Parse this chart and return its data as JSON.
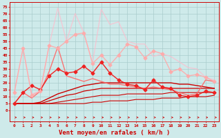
{
  "x": [
    0,
    1,
    2,
    3,
    4,
    5,
    6,
    7,
    8,
    9,
    10,
    11,
    12,
    13,
    14,
    15,
    16,
    17,
    18,
    19,
    20,
    21,
    22,
    23
  ],
  "series": [
    {
      "y": [
        5,
        5,
        5,
        5,
        5,
        5,
        5,
        5,
        5,
        6,
        6,
        7,
        7,
        7,
        8,
        8,
        8,
        9,
        9,
        9,
        10,
        10,
        10,
        11
      ],
      "color": "#cc0000",
      "lw": 0.8,
      "marker": null,
      "alpha": 1.0
    },
    {
      "y": [
        5,
        5,
        5,
        5,
        5,
        6,
        7,
        8,
        9,
        10,
        11,
        11,
        11,
        12,
        12,
        12,
        12,
        12,
        13,
        13,
        13,
        13,
        13,
        13
      ],
      "color": "#cc0000",
      "lw": 0.8,
      "marker": null,
      "alpha": 1.0
    },
    {
      "y": [
        5,
        5,
        5,
        5,
        7,
        9,
        11,
        12,
        14,
        15,
        16,
        16,
        16,
        16,
        16,
        16,
        16,
        16,
        16,
        16,
        16,
        16,
        16,
        16
      ],
      "color": "#cc0000",
      "lw": 0.9,
      "marker": null,
      "alpha": 1.0
    },
    {
      "y": [
        5,
        5,
        5,
        6,
        9,
        12,
        14,
        16,
        18,
        19,
        20,
        20,
        20,
        20,
        20,
        20,
        20,
        20,
        20,
        19,
        19,
        18,
        17,
        16
      ],
      "color": "#cc0000",
      "lw": 1.0,
      "marker": null,
      "alpha": 1.0
    },
    {
      "y": [
        5,
        13,
        18,
        15,
        25,
        30,
        27,
        28,
        32,
        27,
        35,
        27,
        22,
        19,
        18,
        15,
        22,
        17,
        16,
        11,
        10,
        11,
        14,
        13
      ],
      "color": "#ee2222",
      "lw": 1.0,
      "marker": "D",
      "ms": 2.5,
      "alpha": 1.0
    },
    {
      "y": [
        5,
        13,
        9,
        14,
        28,
        46,
        25,
        23,
        21,
        23,
        21,
        19,
        19,
        18,
        17,
        16,
        17,
        16,
        15,
        13,
        11,
        12,
        22,
        21
      ],
      "color": "#ff6666",
      "lw": 1.0,
      "marker": null,
      "alpha": 0.9
    },
    {
      "y": [
        13,
        45,
        11,
        14,
        47,
        45,
        50,
        55,
        56,
        34,
        40,
        33,
        40,
        48,
        46,
        38,
        43,
        41,
        28,
        30,
        25,
        26,
        24,
        21
      ],
      "color": "#ffaaaa",
      "lw": 1.0,
      "marker": "D",
      "ms": 2.5,
      "alpha": 0.9
    },
    {
      "y": [
        13,
        45,
        12,
        14,
        47,
        74,
        50,
        70,
        56,
        34,
        73,
        62,
        64,
        50,
        48,
        48,
        39,
        41,
        39,
        35,
        31,
        30,
        24,
        22
      ],
      "color": "#ffbbcc",
      "lw": 1.0,
      "marker": null,
      "alpha": 0.7
    }
  ],
  "xlabel": "Vent moyen/en rafales ( km/h )",
  "ylabel_ticks": [
    0,
    5,
    10,
    15,
    20,
    25,
    30,
    35,
    40,
    45,
    50,
    55,
    60,
    65,
    70,
    75
  ],
  "ylim": [
    -8,
    78
  ],
  "xlim": [
    -0.5,
    23.5
  ],
  "bg_color": "#ceeaea",
  "grid_color": "#aacccc",
  "text_color": "#cc0000"
}
